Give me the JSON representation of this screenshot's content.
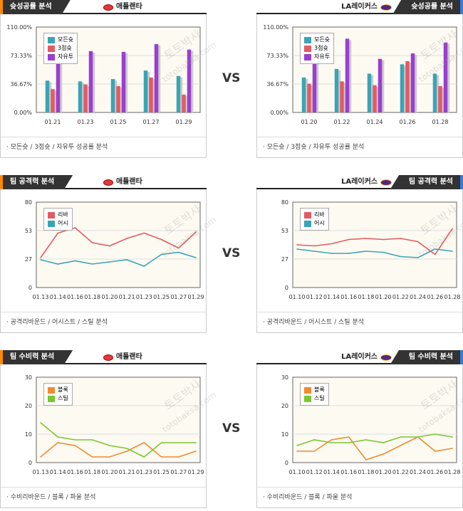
{
  "vs_label": "VS",
  "watermark": {
    "top": "토토박사",
    "bottom": "totobaksa.com"
  },
  "sections": [
    {
      "left": {
        "tag": "슛성공률 분석",
        "team": "애틀랜타",
        "footer": "· 모든슛 / 3점슛 / 자유투 성공률 분석"
      },
      "right": {
        "tag": "슛성공률 분석",
        "team": "LA레이커스",
        "footer": "· 모든슛 / 3점슛 / 자유투 성공률 분석"
      }
    },
    {
      "left": {
        "tag": "팀 공격력 분석",
        "team": "애틀랜타",
        "footer": "· 공격리바운드 / 어시스트 / 스틸 분석"
      },
      "right": {
        "tag": "팀 공격력 분석",
        "team": "LA레이커스",
        "footer": "· 공격리바운드 / 어시스트 / 스틸 분석"
      }
    },
    {
      "left": {
        "tag": "팀 수비력 분석",
        "team": "애틀랜타",
        "footer": "· 수비리바운드 / 블록 / 파울 분석"
      },
      "right": {
        "tag": "팀 수비력 분석",
        "team": "LA레이커스",
        "footer": "· 수비리바운드 / 블록 / 파울 분석"
      }
    }
  ],
  "chart_data": [
    {
      "type": "bar",
      "team": "애틀랜타",
      "categories": [
        "01.21",
        "01.23",
        "01.25",
        "01.27",
        "01.29"
      ],
      "ylim": [
        0,
        110
      ],
      "yticks": [
        "110.00%",
        "73.33%",
        "36.67%",
        "0.00%"
      ],
      "series": [
        {
          "name": "모든슛",
          "color": "#3aa4b7",
          "values": [
            41,
            40,
            43,
            54,
            47
          ]
        },
        {
          "name": "3점슛",
          "color": "#e35a63",
          "values": [
            30,
            36,
            34,
            45,
            23
          ]
        },
        {
          "name": "자유투",
          "color": "#9a3fd0",
          "values": [
            77,
            79,
            78,
            88,
            81
          ]
        }
      ]
    },
    {
      "type": "bar",
      "team": "LA레이커스",
      "categories": [
        "01.20",
        "01.22",
        "01.24",
        "01.26",
        "01.28"
      ],
      "ylim": [
        0,
        110
      ],
      "yticks": [
        "110.00%",
        "73.33%",
        "36.67%",
        "0.00%"
      ],
      "series": [
        {
          "name": "모든슛",
          "color": "#3aa4b7",
          "values": [
            45,
            56,
            50,
            62,
            50
          ]
        },
        {
          "name": "3점슛",
          "color": "#e35a63",
          "values": [
            37,
            40,
            35,
            66,
            34
          ]
        },
        {
          "name": "자유투",
          "color": "#9a3fd0",
          "values": [
            82,
            95,
            69,
            76,
            90
          ]
        }
      ]
    },
    {
      "type": "line",
      "team": "애틀랜타",
      "categories": [
        "01.13",
        "01.14",
        "01.16",
        "01.18",
        "01.20",
        "01.21",
        "01.23",
        "01.25",
        "01.27",
        "01.29"
      ],
      "ylim": [
        0,
        80
      ],
      "yticks": [
        "80",
        "53",
        "27",
        "0"
      ],
      "series": [
        {
          "name": "리바",
          "color": "#e35a63",
          "values": [
            28,
            51,
            56,
            42,
            39,
            46,
            51,
            45,
            37,
            52
          ]
        },
        {
          "name": "어시",
          "color": "#3aa4b7",
          "values": [
            26,
            22,
            25,
            22,
            24,
            26,
            20,
            31,
            33,
            28
          ]
        }
      ]
    },
    {
      "type": "line",
      "team": "LA레이커스",
      "categories": [
        "01.10",
        "01.12",
        "01.14",
        "01.16",
        "01.18",
        "01.20",
        "01.22",
        "01.24",
        "01.26",
        "01.28"
      ],
      "ylim": [
        0,
        80
      ],
      "yticks": [
        "80",
        "53",
        "27",
        "0"
      ],
      "series": [
        {
          "name": "리바",
          "color": "#e35a63",
          "values": [
            40,
            39,
            41,
            45,
            46,
            45,
            46,
            43,
            31,
            55
          ]
        },
        {
          "name": "어시",
          "color": "#3aa4b7",
          "values": [
            36,
            34,
            32,
            32,
            34,
            33,
            29,
            28,
            36,
            34
          ]
        }
      ]
    },
    {
      "type": "line",
      "team": "애틀랜타",
      "categories": [
        "01.13",
        "01.14",
        "01.16",
        "01.18",
        "01.20",
        "01.21",
        "01.23",
        "01.25",
        "01.27",
        "01.29"
      ],
      "ylim": [
        0,
        30
      ],
      "yticks": [
        "30",
        "20",
        "10",
        "0"
      ],
      "series": [
        {
          "name": "블록",
          "color": "#f28a2e",
          "values": [
            2,
            7,
            6,
            2,
            2,
            4,
            7,
            2,
            2,
            4
          ]
        },
        {
          "name": "스틸",
          "color": "#7ac72e",
          "values": [
            14,
            9,
            8,
            8,
            6,
            5,
            2,
            7,
            7,
            7
          ]
        }
      ]
    },
    {
      "type": "line",
      "team": "LA레이커스",
      "categories": [
        "01.10",
        "01.12",
        "01.14",
        "01.16",
        "01.18",
        "01.20",
        "01.22",
        "01.24",
        "01.26",
        "01.28"
      ],
      "ylim": [
        0,
        30
      ],
      "yticks": [
        "30",
        "20",
        "10",
        "0"
      ],
      "series": [
        {
          "name": "블록",
          "color": "#f28a2e",
          "values": [
            4,
            4,
            8,
            9,
            1,
            3,
            6,
            9,
            4,
            5
          ]
        },
        {
          "name": "스틸",
          "color": "#7ac72e",
          "values": [
            6,
            8,
            7,
            7,
            8,
            7,
            9,
            9,
            10,
            9
          ]
        }
      ]
    }
  ]
}
